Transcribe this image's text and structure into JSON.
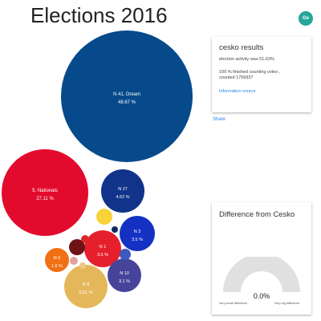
{
  "app": {
    "title": "Elections 2016",
    "avatar_initials": "Ge"
  },
  "parties": [
    {
      "name": "N 41. Dream",
      "pct": "48.67 %",
      "color": "#064a8b",
      "label_color": "#ffffff"
    },
    {
      "name": "5. Nationals",
      "pct": "27.11 %",
      "color": "#e30b2d",
      "label_color": "#ffffff"
    },
    {
      "name": "N 27",
      "pct": "4.62 %",
      "color": "#11338a",
      "label_color": "#ffffff"
    },
    {
      "name": "N 3",
      "pct": "3.5 %",
      "color": "#1531c4",
      "label_color": "#ffffff"
    },
    {
      "name": "N 1",
      "pct": "3.5 %",
      "color": "#e5202c",
      "label_color": "#ffffff"
    },
    {
      "name": "N 8",
      "pct": "5.01 %",
      "color": "#e4b85a",
      "label_color": "#ffffff"
    },
    {
      "name": "N 10",
      "pct": "3.1 %",
      "color": "#45449a",
      "label_color": "#ffffff"
    },
    {
      "name": "N 6",
      "pct": "1.6 %",
      "color": "#f07013",
      "label_color": "#ffffff"
    },
    {
      "name": "",
      "pct": "",
      "color": "#f6d33a",
      "label_color": "#ffffff"
    },
    {
      "name": "",
      "pct": "",
      "color": "#6d1417",
      "label_color": "#ffffff"
    },
    {
      "name": "",
      "pct": "",
      "color": "#d8262a",
      "label_color": "#ffffff"
    },
    {
      "name": "",
      "pct": "",
      "color": "#142a5e",
      "label_color": "#ffffff"
    },
    {
      "name": "",
      "pct": "",
      "color": "#3c5abf",
      "label_color": "#ffffff"
    },
    {
      "name": "",
      "pct": "",
      "color": "#e3a09d",
      "label_color": "#ffffff"
    },
    {
      "name": "",
      "pct": "",
      "color": "#f3c487",
      "label_color": "#ffffff"
    }
  ],
  "results": {
    "title": "cesko results",
    "activity": "election activity was 51.63%",
    "counting_line1": "100 % finished counting votes ,",
    "counting_line2": "counted 1759937",
    "info_link": "Information source"
  },
  "share_label": "Share",
  "difference": {
    "title": "Difference from Cesko",
    "value": "0.0%",
    "value_fraction": 0,
    "min_label": "Very small difference",
    "max_label": "Very big difference",
    "track_color": "#e0e0e0"
  }
}
